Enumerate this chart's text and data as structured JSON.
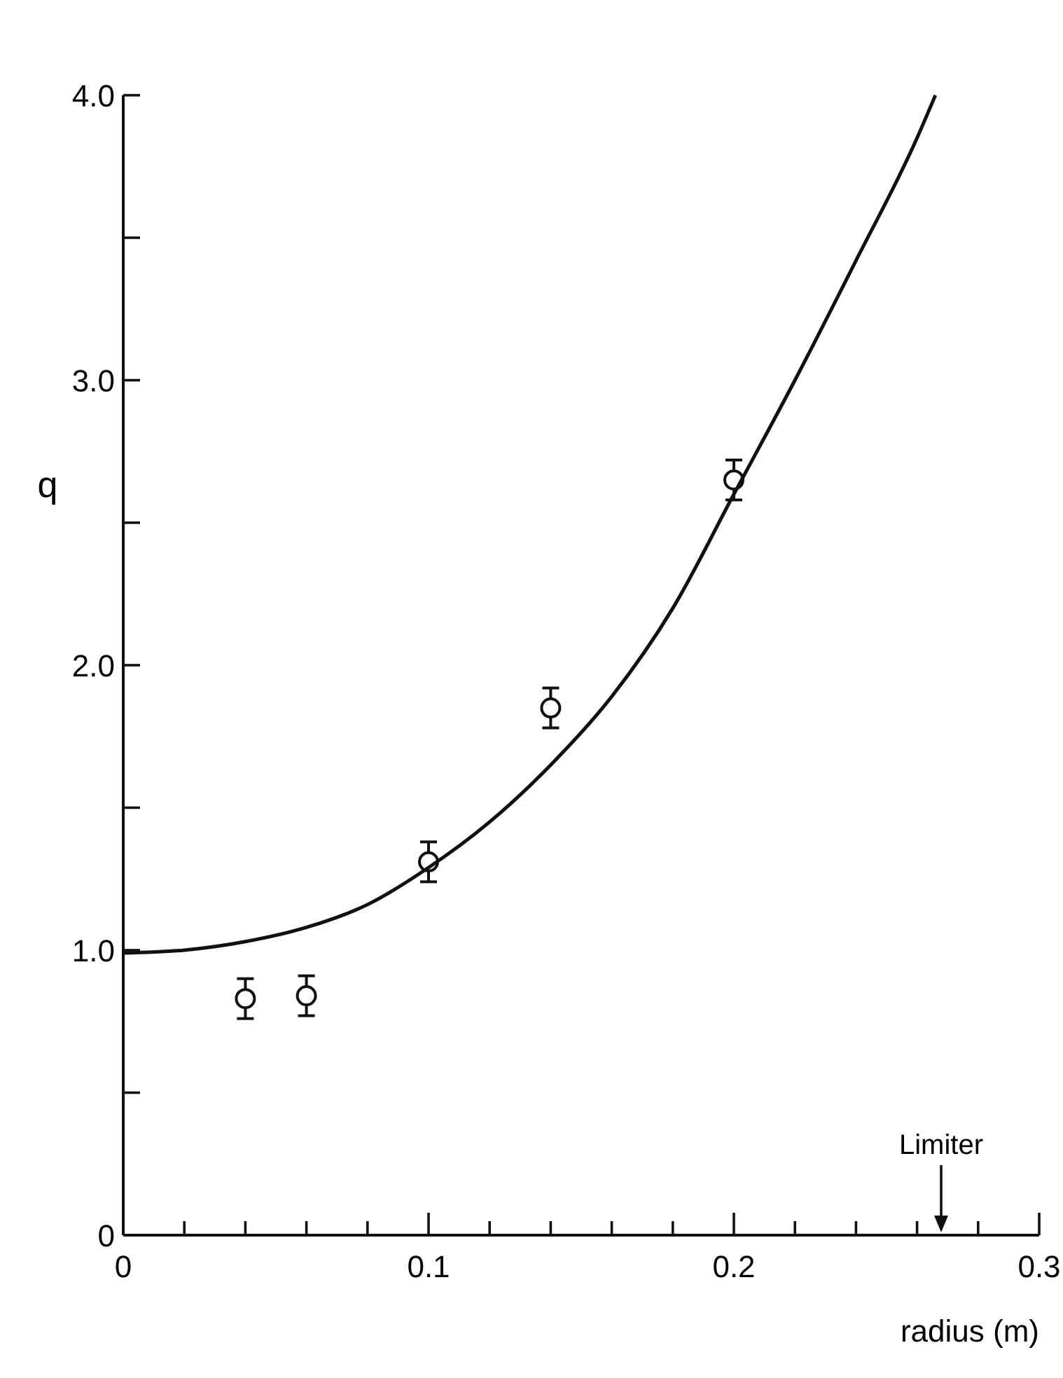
{
  "chart_data": {
    "type": "scatter",
    "xlabel": "radius  (m)",
    "ylabel": "q",
    "xlim": [
      0,
      0.3
    ],
    "ylim": [
      0,
      4.0
    ],
    "xticks": [
      0,
      {
        "value": 0.02,
        "label": null
      },
      {
        "value": 0.04,
        "label": null
      },
      {
        "value": 0.06,
        "label": null
      },
      {
        "value": 0.08,
        "label": null
      },
      0.1,
      {
        "value": 0.12,
        "label": null
      },
      {
        "value": 0.14,
        "label": null
      },
      {
        "value": 0.16,
        "label": null
      },
      {
        "value": 0.18,
        "label": null
      },
      0.2,
      {
        "value": 0.22,
        "label": null
      },
      {
        "value": 0.24,
        "label": null
      },
      {
        "value": 0.26,
        "label": null
      },
      {
        "value": 0.28,
        "label": null
      },
      0.3
    ],
    "yticks": [
      0,
      {
        "value": 0.5,
        "label": null
      },
      {
        "value": 1,
        "label": "1.0"
      },
      {
        "value": 1.5,
        "label": null
      },
      {
        "value": 2,
        "label": "2.0"
      },
      {
        "value": 2.5,
        "label": null
      },
      {
        "value": 3,
        "label": "3.0"
      },
      {
        "value": 3.5,
        "label": null
      },
      {
        "value": 4,
        "label": "4.0"
      }
    ],
    "grid": false,
    "marker": "circle",
    "series": [
      {
        "color": "#111111",
        "x": [
          0.04,
          0.06,
          0.1,
          0.14,
          0.2
        ],
        "values": [
          0.83,
          0.84,
          1.31,
          1.85,
          2.65
        ],
        "errors": [
          0.07,
          0.07,
          0.07,
          0.07,
          0.07
        ]
      },
      {
        "type": "line",
        "color": "#111111",
        "marker": "none",
        "line_style": "solid",
        "x": [
          0,
          0.02,
          0.04,
          0.06,
          0.08,
          0.1,
          0.12,
          0.14,
          0.16,
          0.18,
          0.2,
          0.22,
          0.24,
          0.26,
          0.266
        ],
        "values": [
          0.99,
          1.0,
          1.03,
          1.08,
          1.16,
          1.29,
          1.45,
          1.65,
          1.89,
          2.2,
          2.6,
          3.0,
          3.42,
          3.85,
          4.0
        ]
      }
    ],
    "annotations": [
      "Limiter"
    ]
  }
}
